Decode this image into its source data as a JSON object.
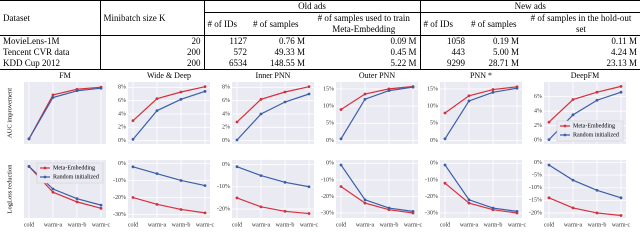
{
  "table": {
    "group_headers": [
      "Old ads",
      "New ads"
    ],
    "headers": [
      "Dataset",
      "Minibatch size K",
      "# of IDs",
      "# of samples",
      "# of samples used to train Meta-Embedding",
      "# of IDs",
      "# of samples",
      "# of samples in the hold-out set"
    ],
    "rows": [
      [
        "MovieLens-1M",
        20,
        1127,
        "0.76 M",
        "0.09 M",
        1058,
        "0.19 M",
        "0.11 M"
      ],
      [
        "Tencent CVR data",
        200,
        572,
        "49.33 M",
        "0.45 M",
        443,
        "5.00 M",
        "4.24 M"
      ],
      [
        "KDD Cup 2012",
        200,
        6534,
        "148.55 M",
        "5.22 M",
        9299,
        "28.71 M",
        "23.13 M"
      ]
    ]
  },
  "chart_data": [
    {
      "type": "line",
      "title": "FM",
      "ylabel": "AUC improvement",
      "ylim": [
        -1,
        11
      ],
      "grid": true,
      "series": [
        {
          "name": "Meta-Embedding",
          "color": "#d62f3c",
          "values": [
            0,
            8.5,
            9.6,
            10.0
          ]
        },
        {
          "name": "Random initialized",
          "color": "#3b5ea8",
          "values": [
            0,
            8.0,
            9.3,
            9.8
          ]
        }
      ]
    },
    {
      "type": "line",
      "title": "Wide & Deep",
      "ylim": [
        -0.5,
        8.8
      ],
      "grid": true,
      "yticks": [
        {
          "value": 8,
          "label": "8%"
        },
        {
          "value": 6,
          "label": "6%"
        },
        {
          "value": 4,
          "label": "4%"
        },
        {
          "value": 2,
          "label": "2%"
        },
        {
          "value": 0,
          "label": "0%"
        }
      ],
      "series": [
        {
          "name": "Meta-Embedding",
          "color": "#d62f3c",
          "values": [
            3.0,
            6.3,
            7.3,
            8.1
          ]
        },
        {
          "name": "Random initialized",
          "color": "#3b5ea8",
          "values": [
            0.2,
            4.5,
            6.2,
            7.4
          ]
        }
      ]
    },
    {
      "type": "line",
      "title": "Inner PNN",
      "ylim": [
        -0.5,
        8.8
      ],
      "grid": true,
      "yticks": [
        {
          "value": 8,
          "label": "8%"
        },
        {
          "value": 6,
          "label": "6%"
        },
        {
          "value": 4,
          "label": "4%"
        },
        {
          "value": 2,
          "label": "2%"
        },
        {
          "value": 0,
          "label": "0%"
        }
      ],
      "series": [
        {
          "name": "Meta-Embedding",
          "color": "#d62f3c",
          "values": [
            2.8,
            6.2,
            7.3,
            8.1
          ]
        },
        {
          "name": "Random initialized",
          "color": "#3b5ea8",
          "values": [
            0.1,
            4.0,
            5.8,
            7.0
          ]
        }
      ]
    },
    {
      "type": "line",
      "title": "Outer PNN",
      "ylim": [
        -1,
        17
      ],
      "grid": true,
      "yticks": [
        {
          "value": 15,
          "label": "15%"
        },
        {
          "value": 10,
          "label": "10%"
        },
        {
          "value": 5,
          "label": "5%"
        },
        {
          "value": 0,
          "label": "0%"
        }
      ],
      "series": [
        {
          "name": "Meta-Embedding",
          "color": "#d62f3c",
          "values": [
            9,
            13.5,
            15,
            15.7
          ]
        },
        {
          "name": "Random initialized",
          "color": "#3b5ea8",
          "values": [
            0.5,
            12,
            14.5,
            15.5
          ]
        }
      ]
    },
    {
      "type": "line",
      "title": "PNN *",
      "ylim": [
        -1,
        17
      ],
      "grid": true,
      "yticks": [
        {
          "value": 15,
          "label": "15%"
        },
        {
          "value": 10,
          "label": "10%"
        },
        {
          "value": 5,
          "label": "5%"
        },
        {
          "value": 0,
          "label": "0%"
        }
      ],
      "series": [
        {
          "name": "Meta-Embedding",
          "color": "#d62f3c",
          "values": [
            8,
            13,
            14.8,
            15.6
          ]
        },
        {
          "name": "Random initialized",
          "color": "#3b5ea8",
          "values": [
            0.5,
            11.5,
            14,
            15.2
          ]
        }
      ]
    },
    {
      "type": "line",
      "title": "DeepFM",
      "ylim": [
        -0.5,
        8
      ],
      "grid": true,
      "legend": "lower right",
      "yticks": [
        {
          "value": 6,
          "label": "6%"
        },
        {
          "value": 4,
          "label": "4%"
        },
        {
          "value": 2,
          "label": "2%"
        },
        {
          "value": 0,
          "label": "0%"
        }
      ],
      "series": [
        {
          "name": "Meta-Embedding",
          "color": "#d62f3c",
          "values": [
            2.5,
            5.6,
            6.6,
            7.4
          ]
        },
        {
          "name": "Random initialized",
          "color": "#3b5ea8",
          "values": [
            0.1,
            3.5,
            5.5,
            6.6
          ]
        }
      ]
    },
    {
      "type": "line",
      "ylabel": "LogLoss reduction",
      "categories": [
        "cold",
        "warm-a",
        "warm-b",
        "warm-c"
      ],
      "ylim": [
        -16,
        2
      ],
      "grid": true,
      "legend": "upper right",
      "series": [
        {
          "name": "Meta-Embedding",
          "color": "#d62f3c",
          "values": [
            0,
            -8,
            -11,
            -13
          ]
        },
        {
          "name": "Random initialized",
          "color": "#3b5ea8",
          "values": [
            0,
            -7,
            -10,
            -12
          ]
        }
      ]
    },
    {
      "type": "line",
      "categories": [
        "cold",
        "warm-a",
        "warm-b",
        "warm-c"
      ],
      "ylim": [
        -32,
        2
      ],
      "grid": true,
      "yticks": [
        {
          "value": 0,
          "label": "0%"
        },
        {
          "value": -10,
          "label": "-10%"
        },
        {
          "value": -20,
          "label": "-20%"
        },
        {
          "value": -30,
          "label": "-30%"
        }
      ],
      "series": [
        {
          "name": "Meta-Embedding",
          "color": "#d62f3c",
          "values": [
            -20,
            -24,
            -27,
            -29
          ]
        },
        {
          "name": "Random initialized",
          "color": "#3b5ea8",
          "values": [
            -2,
            -6,
            -10,
            -13
          ]
        }
      ]
    },
    {
      "type": "line",
      "categories": [
        "cold",
        "warm-a",
        "warm-b",
        "warm-c"
      ],
      "ylim": [
        -24,
        2
      ],
      "grid": true,
      "yticks": [
        {
          "value": 0,
          "label": "0%"
        },
        {
          "value": -10,
          "label": "-10%"
        },
        {
          "value": -20,
          "label": "-20%"
        }
      ],
      "series": [
        {
          "name": "Meta-Embedding",
          "color": "#d62f3c",
          "values": [
            -15,
            -19,
            -21,
            -22
          ]
        },
        {
          "name": "Random initialized",
          "color": "#3b5ea8",
          "values": [
            -1,
            -5,
            -8,
            -10
          ]
        }
      ]
    },
    {
      "type": "line",
      "categories": [
        "cold",
        "warm-a",
        "warm-b",
        "warm-c"
      ],
      "ylim": [
        -33,
        2
      ],
      "grid": true,
      "yticks": [
        {
          "value": 0,
          "label": "0%"
        },
        {
          "value": -10,
          "label": "-10%"
        },
        {
          "value": -20,
          "label": "-20%"
        },
        {
          "value": -30,
          "label": "-30%"
        }
      ],
      "series": [
        {
          "name": "Meta-Embedding",
          "color": "#d62f3c",
          "values": [
            -14,
            -24,
            -28,
            -30
          ]
        },
        {
          "name": "Random initialized",
          "color": "#3b5ea8",
          "values": [
            -1,
            -22,
            -27,
            -29
          ]
        }
      ]
    },
    {
      "type": "line",
      "categories": [
        "cold",
        "warm-a",
        "warm-b",
        "warm-c"
      ],
      "ylim": [
        -33,
        2
      ],
      "grid": true,
      "yticks": [
        {
          "value": 0,
          "label": "0%"
        },
        {
          "value": -10,
          "label": "-10%"
        },
        {
          "value": -20,
          "label": "-20%"
        },
        {
          "value": -30,
          "label": "-30%"
        }
      ],
      "series": [
        {
          "name": "Meta-Embedding",
          "color": "#d62f3c",
          "values": [
            -12,
            -24,
            -28,
            -30
          ]
        },
        {
          "name": "Random initialized",
          "color": "#3b5ea8",
          "values": [
            -1,
            -22,
            -27,
            -29
          ]
        }
      ]
    },
    {
      "type": "line",
      "categories": [
        "cold",
        "warm-a",
        "warm-b",
        "warm-c"
      ],
      "ylim": [
        -22,
        1
      ],
      "grid": true,
      "yticks": [
        {
          "value": 0,
          "label": "0%"
        },
        {
          "value": -5,
          "label": "-5%"
        },
        {
          "value": -10,
          "label": "-10%"
        },
        {
          "value": -15,
          "label": "-15%"
        },
        {
          "value": -20,
          "label": "-20%"
        }
      ],
      "series": [
        {
          "name": "Meta-Embedding",
          "color": "#d62f3c",
          "values": [
            -14,
            -18,
            -20,
            -21
          ]
        },
        {
          "name": "Random initialized",
          "color": "#3b5ea8",
          "values": [
            -1,
            -7,
            -11,
            -14
          ]
        }
      ]
    }
  ]
}
